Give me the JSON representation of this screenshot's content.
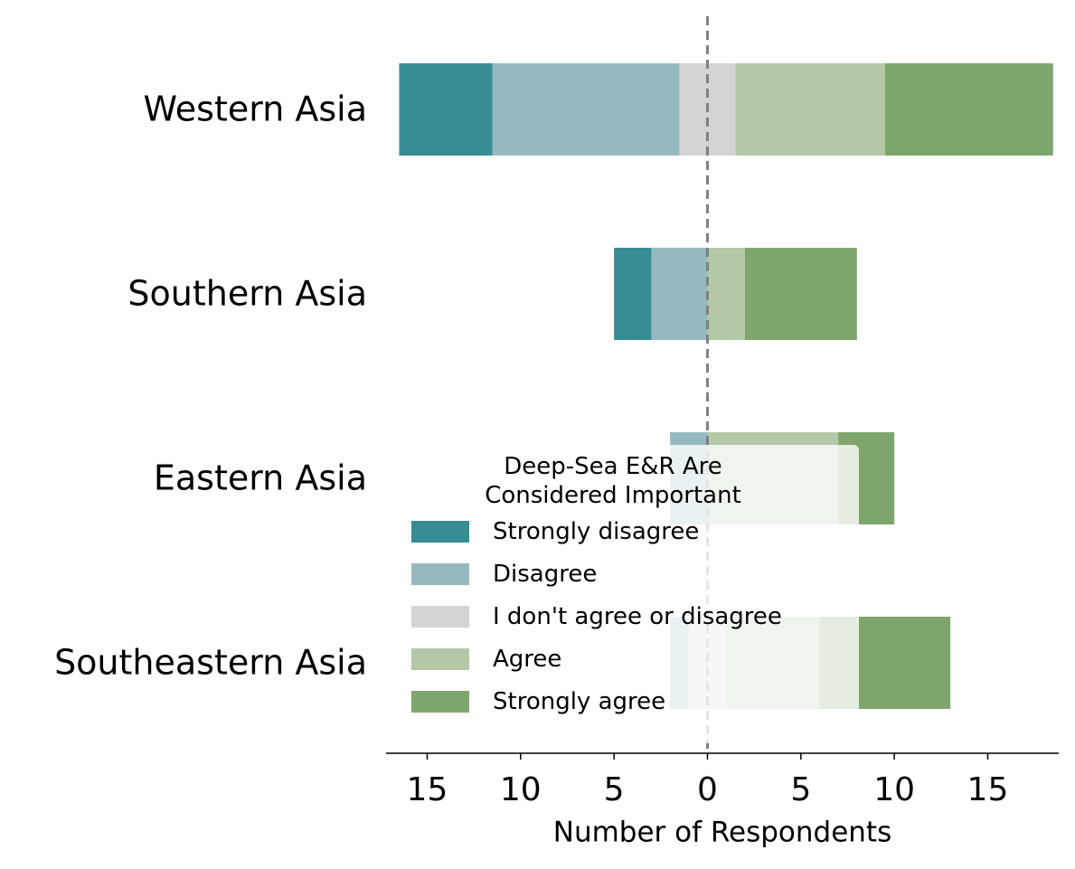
{
  "chart_data": {
    "type": "diverging_bar",
    "categories": [
      "Western Asia",
      "Southern Asia",
      "Eastern Asia",
      "Southeastern Asia"
    ],
    "series": [
      {
        "name": "Strongly disagree",
        "color": "#388c94",
        "values": [
          5,
          2,
          0,
          0
        ]
      },
      {
        "name": "Disagree",
        "color": "#96b9bf",
        "values": [
          10,
          3,
          2,
          1
        ]
      },
      {
        "name": "I don't agree or disagree",
        "color": "#d4d4d4",
        "values": [
          3,
          0,
          0,
          2
        ]
      },
      {
        "name": "Agree",
        "color": "#b4c8a8",
        "values": [
          8,
          2,
          7,
          5
        ]
      },
      {
        "name": "Strongly agree",
        "color": "#7ea56c",
        "values": [
          9,
          6,
          3,
          7
        ]
      }
    ],
    "x_label": "Number of Respondents",
    "legend_title": "Deep-Sea E&R Are\nConsidered Important",
    "xlim": [
      -17.2,
      18.8
    ],
    "xticks": [
      {
        "value": -15,
        "label": "15"
      },
      {
        "value": -10,
        "label": "10"
      },
      {
        "value": -5,
        "label": "5"
      },
      0,
      5,
      10,
      15
    ]
  }
}
